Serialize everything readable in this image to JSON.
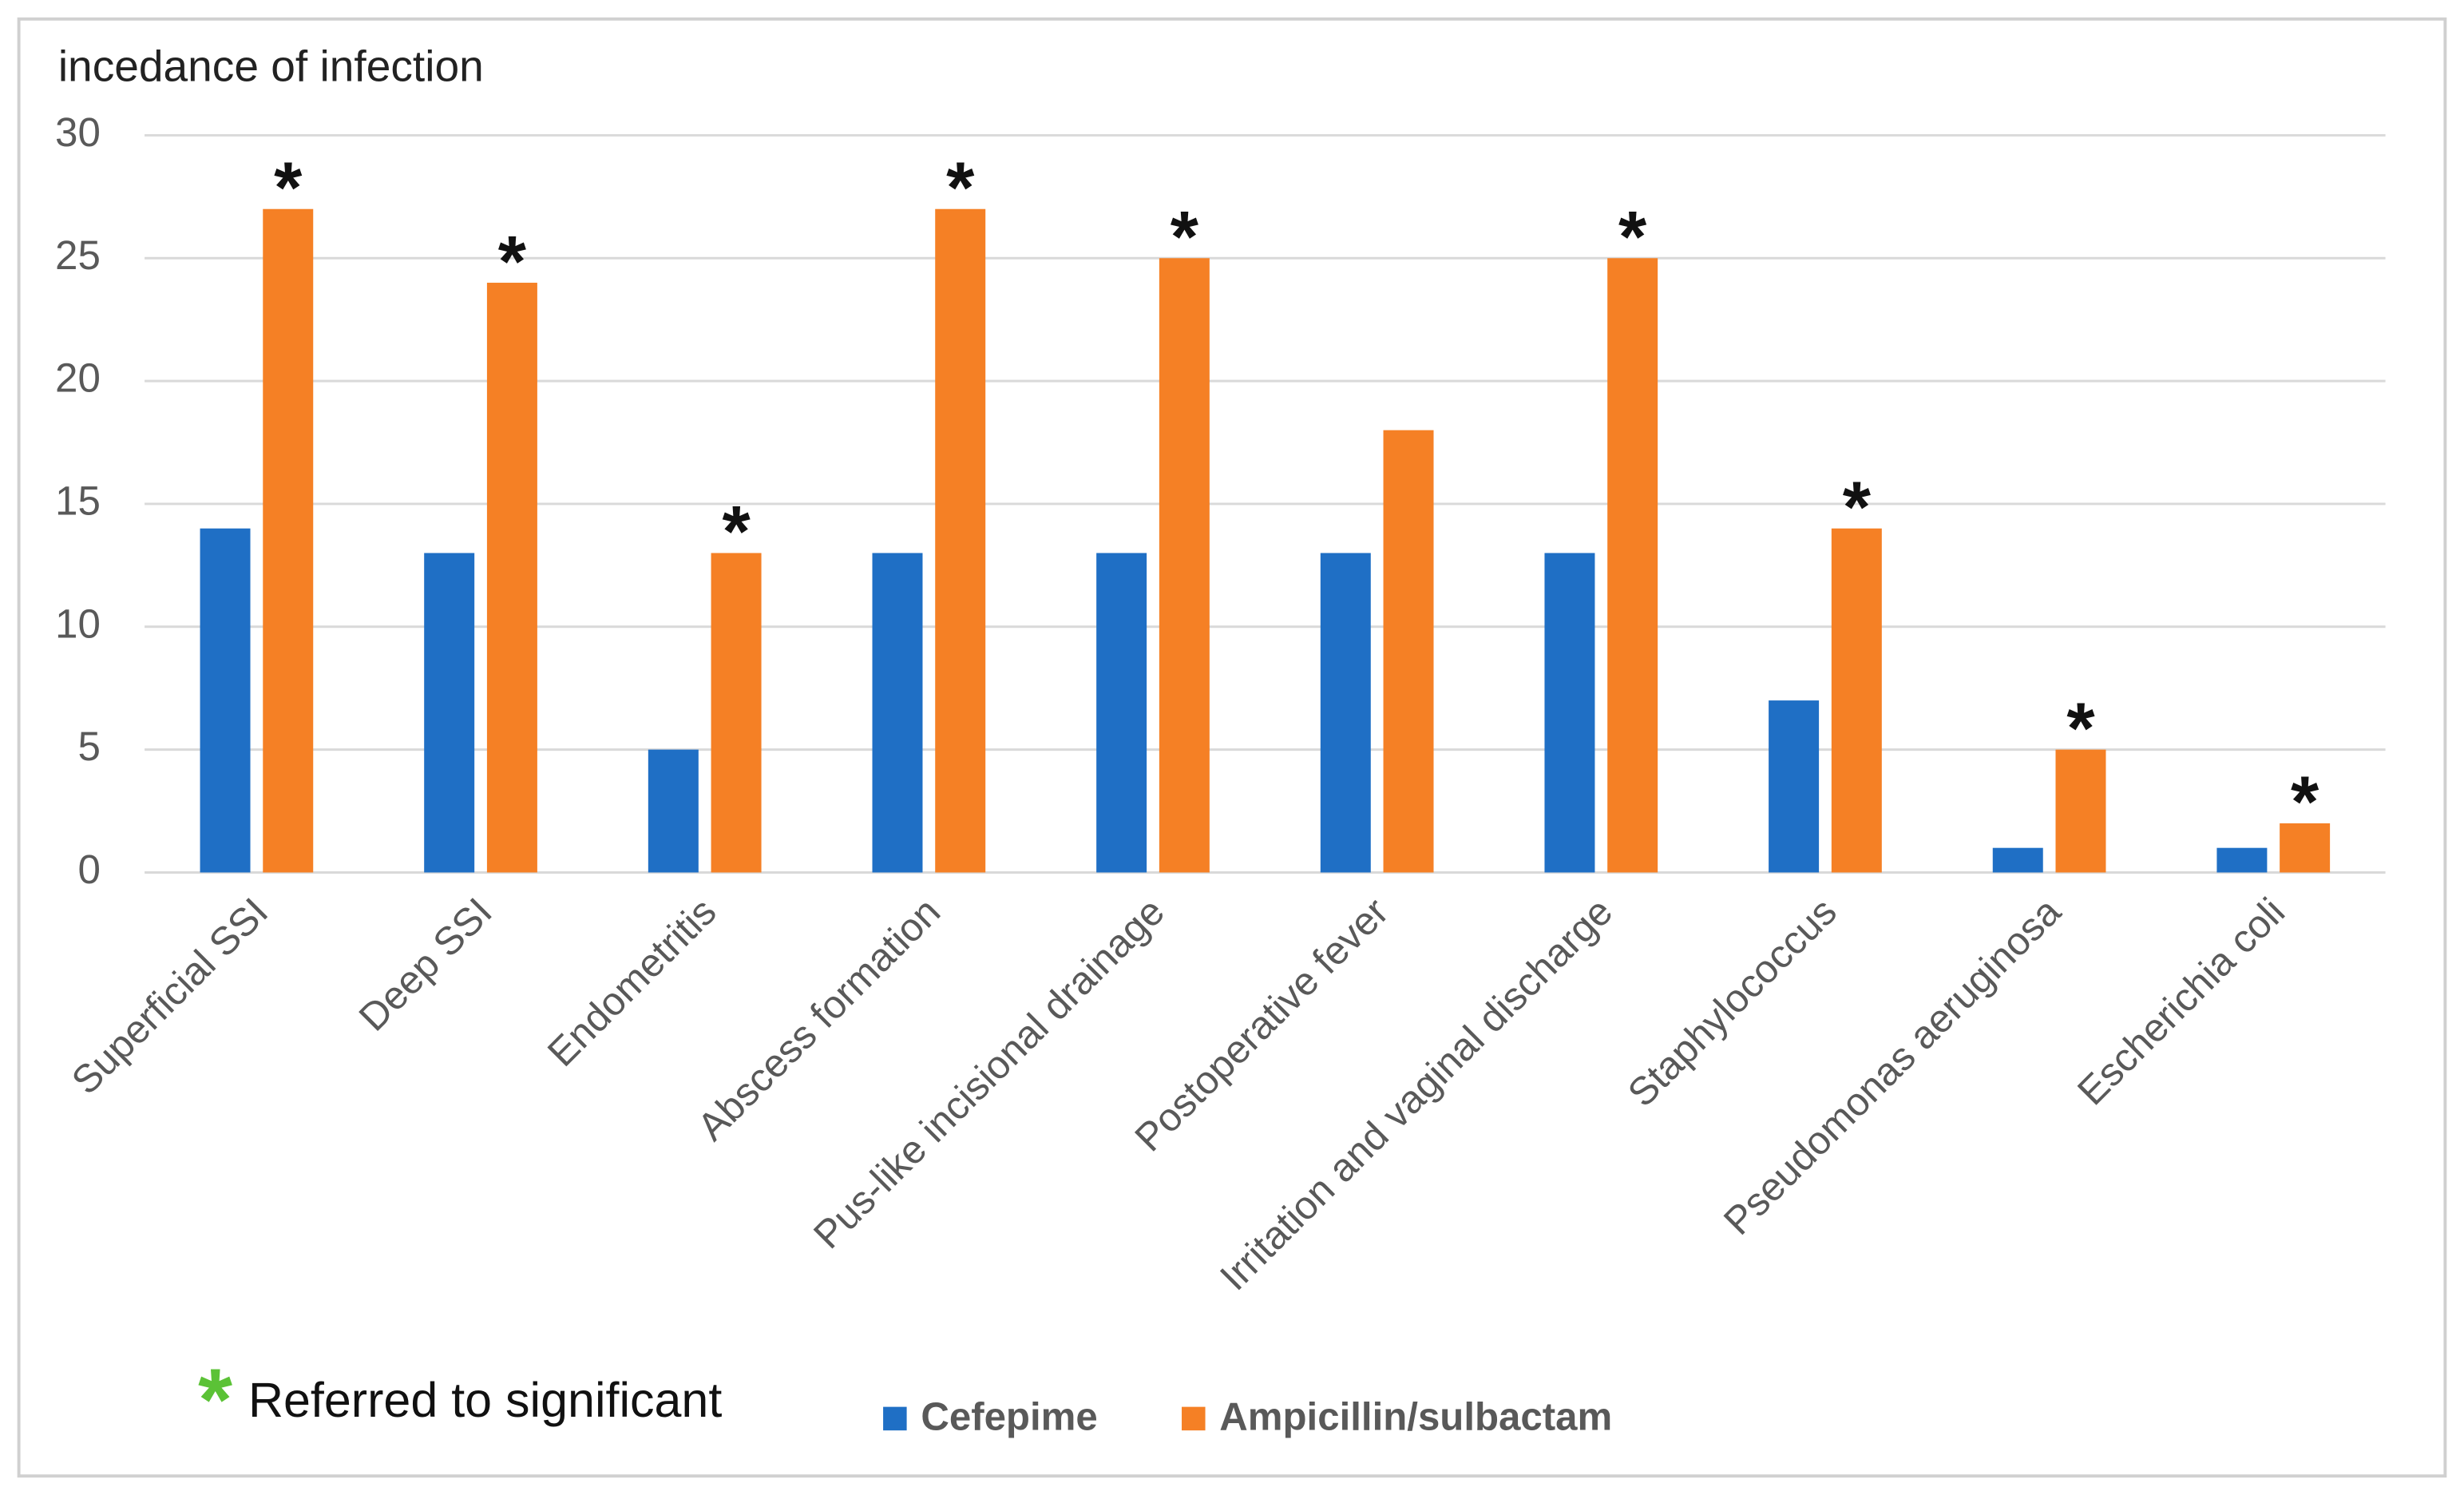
{
  "chart_data": {
    "type": "bar",
    "y_axis_label": "incedance of infection",
    "categories": [
      "Superficial SSI",
      "Deep SSI",
      "Endometritis",
      "Abscess formation",
      "Pus-like incisional drainage",
      "Postoperative fever",
      "Irritation and vaginal discharge",
      "Staphylococcus",
      "Pseudomonas aeruginosa",
      "Escherichia coli"
    ],
    "series": [
      {
        "name": "Cefepime",
        "color": "#1f6fc5",
        "values": [
          14,
          13,
          5,
          13,
          13,
          13,
          13,
          7,
          1,
          1
        ]
      },
      {
        "name": "Ampicillin/sulbactam",
        "color": "#f58025",
        "values": [
          27,
          24,
          13,
          27,
          25,
          18,
          25,
          14,
          5,
          2
        ],
        "markers": [
          "*",
          "*",
          "*",
          "*",
          "*",
          null,
          "*",
          "*",
          "*",
          "*"
        ]
      }
    ],
    "ylim": [
      0,
      30
    ],
    "yticks": [
      0,
      5,
      10,
      15,
      20,
      25,
      30
    ],
    "grid": true,
    "note": {
      "symbol": "*",
      "symbol_color": "#5bc236",
      "text": "Referred to significant"
    }
  }
}
